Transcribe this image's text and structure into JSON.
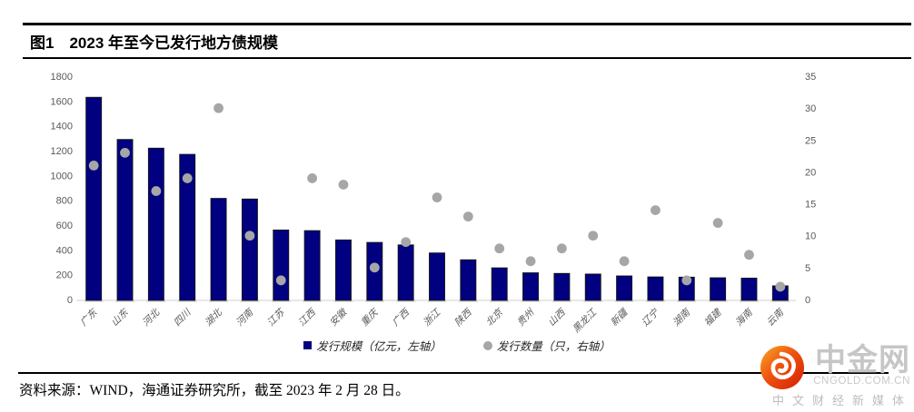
{
  "header": {
    "figure_label": "图1",
    "title": "2023 年至今已发行地方债规模"
  },
  "chart_data": {
    "type": "bar",
    "title": "图1 2023 年至今已发行地方债规模",
    "categories": [
      "广东",
      "山东",
      "河北",
      "四川",
      "湖北",
      "河南",
      "江苏",
      "江西",
      "安徽",
      "重庆",
      "广西",
      "浙江",
      "陕西",
      "北京",
      "贵州",
      "山西",
      "黑龙江",
      "新疆",
      "辽宁",
      "湖南",
      "福建",
      "海南",
      "云南"
    ],
    "series": [
      {
        "name": "发行规模（亿元，左轴）",
        "type": "bar",
        "axis": "left",
        "color": "#000080",
        "values": [
          1630,
          1290,
          1220,
          1170,
          815,
          810,
          560,
          555,
          480,
          460,
          440,
          375,
          320,
          255,
          215,
          210,
          205,
          190,
          182,
          180,
          175,
          172,
          110
        ]
      },
      {
        "name": "发行数量（只，右轴）",
        "type": "scatter",
        "axis": "right",
        "color": "#a6a6a6",
        "values": [
          21,
          23,
          17,
          19,
          30,
          10,
          3,
          19,
          18,
          5,
          9,
          16,
          13,
          8,
          6,
          8,
          10,
          6,
          14,
          3,
          12,
          7,
          2
        ]
      }
    ],
    "left_axis": {
      "min": 0,
      "max": 1800,
      "step": 200,
      "ticks": [
        0,
        200,
        400,
        600,
        800,
        1000,
        1200,
        1400,
        1600,
        1800
      ]
    },
    "right_axis": {
      "min": 0,
      "max": 35,
      "step": 5,
      "ticks": [
        0,
        5,
        10,
        15,
        20,
        25,
        30,
        35
      ]
    },
    "grid": false,
    "legend_position": "bottom"
  },
  "footer": {
    "source": "资料来源：WIND，海通证券研究所，截至 2023 年 2 月 28 日。"
  },
  "logo": {
    "name": "中金网",
    "domain": "CNGOLD.COM.CN",
    "tagline": "中文财经新媒体",
    "accent_top": "#f9a825",
    "accent_mid": "#ef5310",
    "accent_bottom": "#d21d04"
  }
}
